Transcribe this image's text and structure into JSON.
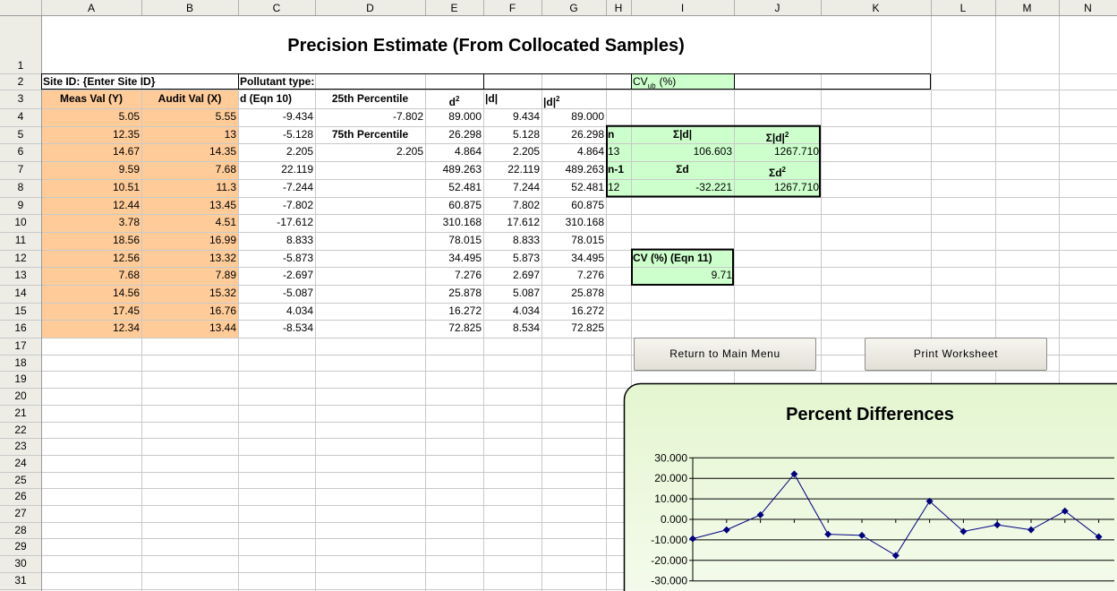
{
  "sheet": {
    "columns": [
      "A",
      "B",
      "C",
      "D",
      "E",
      "F",
      "G",
      "H",
      "I",
      "J",
      "K",
      "L",
      "M",
      "N"
    ],
    "rows": [
      1,
      2,
      3,
      4,
      5,
      6,
      7,
      8,
      9,
      10,
      11,
      12,
      13,
      14,
      15,
      16,
      17,
      18,
      19,
      20,
      21,
      22,
      23,
      24,
      25,
      26,
      27,
      28,
      29,
      30,
      31
    ],
    "title": "Precision Estimate (From Collocated Samples)",
    "cells": {
      "A2": "Site ID: {Enter Site ID}",
      "C2": "Pollutant type:",
      "I2": {
        "base": "CV",
        "sub": "ub",
        "tail": "(%)"
      },
      "A3": "Meas Val (Y)",
      "B3": "Audit Val (X)",
      "C3": "d (Eqn 10)",
      "D3": "25th Percentile",
      "E3": {
        "base": "d",
        "sup": "2"
      },
      "F3": "|d|",
      "G3": {
        "base": "|d|",
        "sup": "2"
      },
      "D4": "-7.802",
      "D5": "75th Percentile",
      "D6": "2.205",
      "H5": "n",
      "I5": "Σ|d|",
      "J5": {
        "base": "Σ|d|",
        "sup": "2"
      },
      "H6": "13",
      "I6": "106.603",
      "J6": "1267.710",
      "H7": "n-1",
      "I7": "Σd",
      "J7": {
        "base": "Σd",
        "sup": "2"
      },
      "H8": "12",
      "I8": "-32.221",
      "J8": "1267.710",
      "I12": "CV (%) (Eqn 11)",
      "I13": "9.71"
    },
    "table": {
      "A": [
        "5.05",
        "12.35",
        "14.67",
        "9.59",
        "10.51",
        "12.44",
        "3.78",
        "18.56",
        "12.56",
        "7.68",
        "14.56",
        "17.45",
        "12.34"
      ],
      "B": [
        "5.55",
        "13",
        "14.35",
        "7.68",
        "11.3",
        "13.45",
        "4.51",
        "16.99",
        "13.32",
        "7.89",
        "15.32",
        "16.76",
        "13.44"
      ],
      "C": [
        "-9.434",
        "-5.128",
        "2.205",
        "22.119",
        "-7.244",
        "-7.802",
        "-17.612",
        "8.833",
        "-5.873",
        "-2.697",
        "-5.087",
        "4.034",
        "-8.534"
      ],
      "E": [
        "89.000",
        "26.298",
        "4.864",
        "489.263",
        "52.481",
        "60.875",
        "310.168",
        "78.015",
        "34.495",
        "7.276",
        "25.878",
        "16.272",
        "72.825"
      ],
      "F": [
        "9.434",
        "5.128",
        "2.205",
        "22.119",
        "7.244",
        "7.802",
        "17.612",
        "8.833",
        "5.873",
        "2.697",
        "5.087",
        "4.034",
        "8.534"
      ],
      "G": [
        "89.000",
        "26.298",
        "4.864",
        "489.263",
        "52.481",
        "60.875",
        "310.168",
        "78.015",
        "34.495",
        "7.276",
        "25.878",
        "16.272",
        "72.825"
      ]
    }
  },
  "buttons": [
    "Return to Main Menu",
    "Print Worksheet"
  ],
  "chart_data": {
    "type": "line",
    "title": "Percent Differences",
    "values": [
      -9.434,
      -5.128,
      2.205,
      22.119,
      -7.244,
      -7.802,
      -17.612,
      8.833,
      -5.873,
      -2.697,
      -5.087,
      4.034,
      -8.534
    ],
    "color": "#000080",
    "ylim": [
      -30,
      30
    ],
    "yticks": [
      {
        "value": 30,
        "label": "30.000"
      },
      {
        "value": 20,
        "label": "20.000"
      },
      {
        "value": 10,
        "label": "10.000"
      },
      {
        "value": 0,
        "label": "0.000"
      },
      {
        "value": -10,
        "label": "-10.000"
      },
      {
        "value": -20,
        "label": "-20.000"
      },
      {
        "value": -30,
        "label": "-30.000"
      }
    ],
    "grid": true
  }
}
